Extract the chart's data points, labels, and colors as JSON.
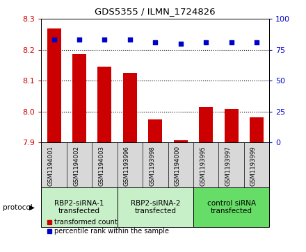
{
  "title": "GDS5355 / ILMN_1724826",
  "samples": [
    "GSM1194001",
    "GSM1194002",
    "GSM1194003",
    "GSM1193996",
    "GSM1193998",
    "GSM1194000",
    "GSM1193995",
    "GSM1193997",
    "GSM1193999"
  ],
  "transformed_counts": [
    8.27,
    8.185,
    8.145,
    8.125,
    7.975,
    7.908,
    8.015,
    8.008,
    7.982
  ],
  "percentile_ranks": [
    83,
    83,
    83,
    83,
    81,
    80,
    81,
    81,
    81
  ],
  "ylim_left": [
    7.9,
    8.3
  ],
  "ylim_right": [
    0,
    100
  ],
  "yticks_left": [
    7.9,
    8.0,
    8.1,
    8.2,
    8.3
  ],
  "yticks_right": [
    0,
    25,
    50,
    75,
    100
  ],
  "bar_color": "#cc0000",
  "scatter_color": "#0000cc",
  "groups": [
    {
      "label": "RBP2-siRNA-1\ntransfected",
      "start": 0,
      "end": 3,
      "color": "#c8f0c8"
    },
    {
      "label": "RBP2-siRNA-2\ntransfected",
      "start": 3,
      "end": 6,
      "color": "#c8f0c8"
    },
    {
      "label": "control siRNA\ntransfected",
      "start": 6,
      "end": 9,
      "color": "#66dd66"
    }
  ],
  "protocol_label": "protocol",
  "legend_bar_label": "transformed count",
  "legend_scatter_label": "percentile rank within the sample",
  "bg_color": "#d8d8d8",
  "plot_bg": "#ffffff",
  "grid_yticks": [
    8.0,
    8.1,
    8.2
  ]
}
